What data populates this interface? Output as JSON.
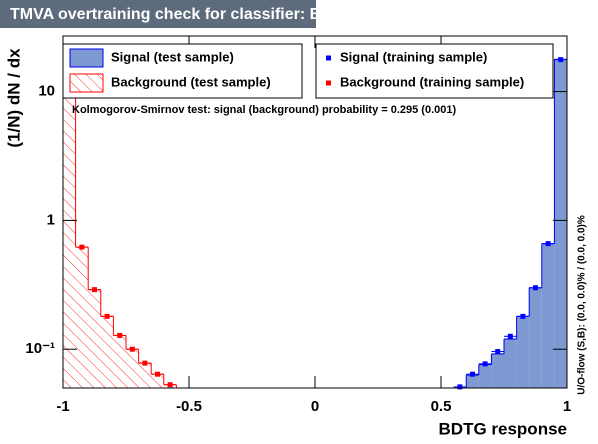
{
  "chart_data": {
    "type": "histogram",
    "title": "TMVA overtraining check for classifier: BDTG",
    "xlabel": "BDTG response",
    "ylabel": "(1/N) dN / dx",
    "annotation": "Kolmogorov-Smirnov test: signal (background) probability = 0.295 (0.001)",
    "side_note": "U/O-flow (S,B): (0.0, 0.0)% / (0.0, 0.0)%",
    "log_y": true,
    "xlim": [
      -1,
      1
    ],
    "ylim": [
      0.05,
      27
    ],
    "xticks": [
      -1,
      -0.5,
      0,
      0.5,
      1
    ],
    "yticks": [
      {
        "value": 0.1,
        "label": "10⁻¹"
      },
      1,
      10
    ],
    "series": [
      {
        "name": "Signal (test sample)",
        "style": "filled",
        "color": "#7d99d1",
        "line_color": "#0000ee",
        "bins": [
          0.55,
          0.6,
          0.65,
          0.7,
          0.75,
          0.8,
          0.85,
          0.9,
          0.95,
          1
        ],
        "values": [
          0.05,
          0.063,
          0.076,
          0.092,
          0.12,
          0.18,
          0.3,
          0.66,
          17.8
        ]
      },
      {
        "name": "Background (test sample)",
        "style": "hatched",
        "color": "#ff0000",
        "line_color": "#ff0000",
        "bins": [
          -1,
          -0.95,
          -0.9,
          -0.85,
          -0.8,
          -0.75,
          -0.7,
          -0.65,
          -0.6,
          -0.55
        ],
        "values": [
          17.8,
          0.62,
          0.29,
          0.18,
          0.128,
          0.1,
          0.078,
          0.064,
          0.053
        ]
      },
      {
        "name": "Signal (training sample)",
        "style": "points",
        "color": "#0000ff",
        "bins": [
          0.55,
          0.6,
          0.65,
          0.7,
          0.75,
          0.8,
          0.85,
          0.9,
          0.95,
          1
        ],
        "values": [
          0.051,
          0.064,
          0.077,
          0.096,
          0.126,
          0.18,
          0.3,
          0.66,
          17.7
        ]
      },
      {
        "name": "Background (training sample)",
        "style": "points",
        "color": "#ff0000",
        "bins": [
          -1,
          -0.95,
          -0.9,
          -0.85,
          -0.8,
          -0.75,
          -0.7,
          -0.65,
          -0.6,
          -0.55
        ],
        "values": [
          17.7,
          0.62,
          0.29,
          0.18,
          0.128,
          0.1,
          0.078,
          0.064,
          0.053
        ]
      }
    ]
  }
}
